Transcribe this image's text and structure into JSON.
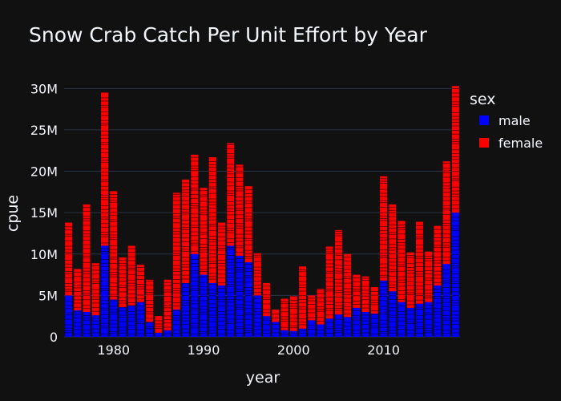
{
  "title": "Snow Crab Catch Per Unit Effort by Year",
  "colors": {
    "background": "#111111",
    "grid": "#283442",
    "text": "#f2f5fa",
    "male": "#0000ff",
    "female": "#ff0000"
  },
  "chart_data": {
    "type": "bar",
    "barmode": "stack",
    "title": "Snow Crab Catch Per Unit Effort by Year",
    "xlabel": "year",
    "ylabel": "cpue",
    "xlim": [
      1974.5,
      2018.5
    ],
    "ylim": [
      0,
      31000000
    ],
    "xticks": [
      1980,
      1990,
      2000,
      2010
    ],
    "xtick_labels": [
      "1980",
      "1990",
      "2000",
      "2010"
    ],
    "yticks": [
      0,
      5000000,
      10000000,
      15000000,
      20000000,
      25000000,
      30000000
    ],
    "ytick_labels": [
      "0",
      "5M",
      "10M",
      "15M",
      "20M",
      "25M",
      "30M"
    ],
    "grid": true,
    "legend": {
      "title": "sex",
      "position": "top-right"
    },
    "x": [
      1975,
      1976,
      1977,
      1978,
      1979,
      1980,
      1981,
      1982,
      1983,
      1984,
      1985,
      1986,
      1987,
      1988,
      1989,
      1990,
      1991,
      1992,
      1993,
      1994,
      1995,
      1996,
      1997,
      1998,
      1999,
      2000,
      2001,
      2002,
      2003,
      2004,
      2005,
      2006,
      2007,
      2008,
      2009,
      2010,
      2011,
      2012,
      2013,
      2014,
      2015,
      2016,
      2017,
      2018
    ],
    "series": [
      {
        "name": "male",
        "color": "#0000ff",
        "values": [
          5000000,
          3200000,
          3000000,
          2600000,
          11000000,
          4500000,
          3600000,
          3800000,
          4200000,
          1800000,
          500000,
          800000,
          3300000,
          6500000,
          10000000,
          7500000,
          6500000,
          6200000,
          11000000,
          9800000,
          9000000,
          5000000,
          2500000,
          1800000,
          800000,
          700000,
          1000000,
          2000000,
          1500000,
          2200000,
          2700000,
          2400000,
          3500000,
          3000000,
          2800000,
          6800000,
          5500000,
          4200000,
          3500000,
          4000000,
          4200000,
          6200000,
          8800000,
          15000000
        ]
      },
      {
        "name": "female",
        "color": "#ff0000",
        "values": [
          8800000,
          5000000,
          13000000,
          6300000,
          18500000,
          13100000,
          6000000,
          7200000,
          4500000,
          5100000,
          2000000,
          6100000,
          14100000,
          12500000,
          12000000,
          10500000,
          15200000,
          7600000,
          12400000,
          11000000,
          9200000,
          5100000,
          4000000,
          1500000,
          3800000,
          4200000,
          7500000,
          3000000,
          4300000,
          8700000,
          10200000,
          7600000,
          4000000,
          4300000,
          3200000,
          12600000,
          10500000,
          9800000,
          6700000,
          9900000,
          6100000,
          7200000,
          12400000,
          15300000
        ]
      }
    ]
  }
}
